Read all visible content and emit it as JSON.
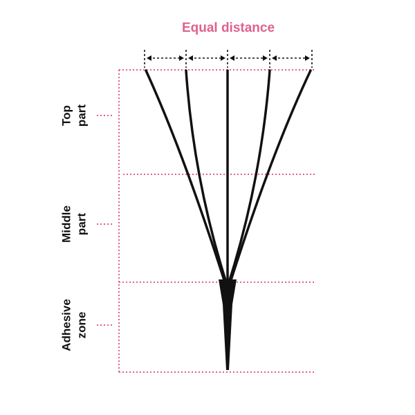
{
  "title": "Equal distance",
  "sections": [
    {
      "lines": [
        "Top",
        "part"
      ]
    },
    {
      "lines": [
        "Middle",
        "part"
      ]
    },
    {
      "lines": [
        "Adhesive",
        "zone"
      ]
    }
  ]
}
